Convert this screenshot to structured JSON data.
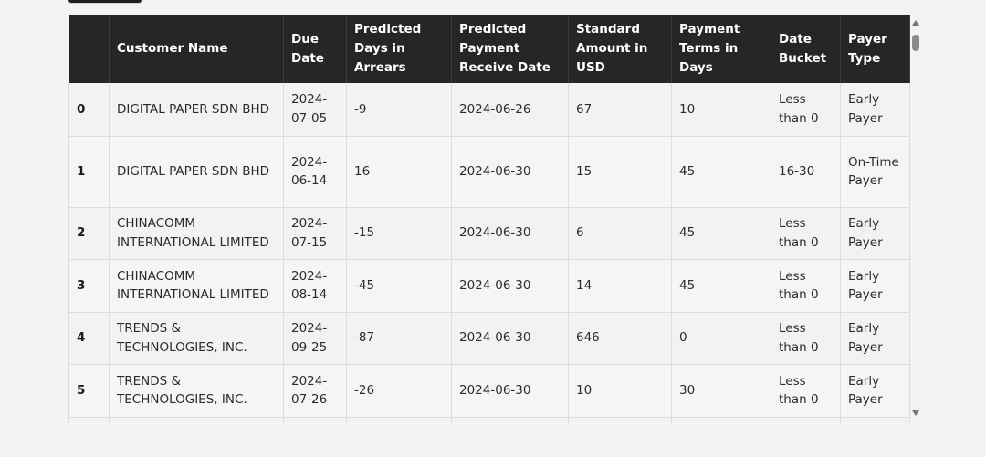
{
  "table": {
    "headers": [
      {
        "key": "index",
        "label": ""
      },
      {
        "key": "customer_name",
        "label": "Customer Name"
      },
      {
        "key": "due_date",
        "label": "Due Date"
      },
      {
        "key": "predicted_days_in_arrears",
        "label": "Predicted Days in Arrears"
      },
      {
        "key": "predicted_payment_receive_date",
        "label": "Predicted Payment Receive Date"
      },
      {
        "key": "standard_amount_in_usd",
        "label": "Standard Amount in USD"
      },
      {
        "key": "payment_terms_in_days",
        "label": "Payment Terms in Days"
      },
      {
        "key": "date_bucket",
        "label": "Date Bucket"
      },
      {
        "key": "payer_type",
        "label": "Payer Type"
      }
    ],
    "rows": [
      {
        "index": "0",
        "customer_name": "DIGITAL PAPER SDN BHD",
        "due_date": "2024-07-05",
        "predicted_days_in_arrears": "-9",
        "predicted_payment_receive_date": "2024-06-26",
        "standard_amount_in_usd": "67",
        "payment_terms_in_days": "10",
        "date_bucket": "Less than 0",
        "payer_type": "Early Payer"
      },
      {
        "index": "1",
        "customer_name": "DIGITAL PAPER SDN BHD",
        "due_date": "2024-06-14",
        "predicted_days_in_arrears": "16",
        "predicted_payment_receive_date": "2024-06-30",
        "standard_amount_in_usd": "15",
        "payment_terms_in_days": "45",
        "date_bucket": "16-30",
        "payer_type": "On-Time Payer"
      },
      {
        "index": "2",
        "customer_name": "CHINACOMM INTERNATIONAL LIMITED",
        "due_date": "2024-07-15",
        "predicted_days_in_arrears": "-15",
        "predicted_payment_receive_date": "2024-06-30",
        "standard_amount_in_usd": "6",
        "payment_terms_in_days": "45",
        "date_bucket": "Less than 0",
        "payer_type": "Early Payer"
      },
      {
        "index": "3",
        "customer_name": "CHINACOMM INTERNATIONAL LIMITED",
        "due_date": "2024-08-14",
        "predicted_days_in_arrears": "-45",
        "predicted_payment_receive_date": "2024-06-30",
        "standard_amount_in_usd": "14",
        "payment_terms_in_days": "45",
        "date_bucket": "Less than 0",
        "payer_type": "Early Payer"
      },
      {
        "index": "4",
        "customer_name": "TRENDS & TECHNOLOGIES, INC.",
        "due_date": "2024-09-25",
        "predicted_days_in_arrears": "-87",
        "predicted_payment_receive_date": "2024-06-30",
        "standard_amount_in_usd": "646",
        "payment_terms_in_days": "0",
        "date_bucket": "Less than 0",
        "payer_type": "Early Payer"
      },
      {
        "index": "5",
        "customer_name": "TRENDS & TECHNOLOGIES, INC.",
        "due_date": "2024-07-26",
        "predicted_days_in_arrears": "-26",
        "predicted_payment_receive_date": "2024-06-30",
        "standard_amount_in_usd": "10",
        "payment_terms_in_days": "30",
        "date_bucket": "Less than 0",
        "payer_type": "Early Payer"
      },
      {
        "index": "6",
        "customer_name": "",
        "due_date": "",
        "predicted_days_in_arrears": "",
        "predicted_payment_receive_date": "",
        "standard_amount_in_usd": "",
        "payment_terms_in_days": "",
        "date_bucket": "",
        "payer_type": ""
      }
    ]
  },
  "scrollbar": {
    "up_icon": "triangle-up",
    "down_icon": "triangle-down"
  }
}
